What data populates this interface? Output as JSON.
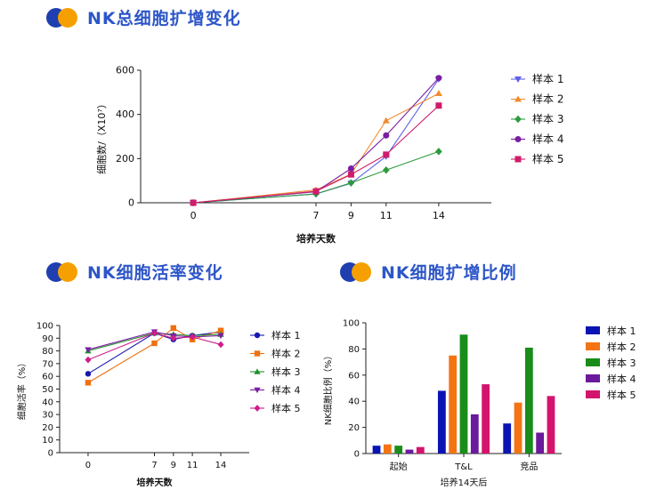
{
  "colors": {
    "header_blue": "#1f3fb0",
    "header_orange": "#f5a000",
    "title": "#2d56c8"
  },
  "sections": {
    "total_title": "NK总细胞扩增变化",
    "viability_title": "NK细胞活率变化",
    "ratio_title": "NK细胞扩增比例"
  },
  "chart_data": [
    {
      "id": "total",
      "type": "line",
      "title": "NK总细胞扩增变化",
      "xlabel": "培养天数",
      "ylabel": "细胞数/（X10⁷）",
      "x": [
        0,
        7,
        9,
        11,
        14
      ],
      "xlim": [
        -3,
        17
      ],
      "ylim": [
        0,
        600
      ],
      "yticks": [
        0,
        200,
        400,
        600
      ],
      "legend": "right",
      "series": [
        {
          "name": "样本 1",
          "color": "#6060e8",
          "marker": "tri-down",
          "values": [
            0,
            40,
            88,
            210,
            560
          ]
        },
        {
          "name": "样本 2",
          "color": "#f08c30",
          "marker": "tri-up",
          "values": [
            0,
            58,
            130,
            372,
            495
          ]
        },
        {
          "name": "样本 3",
          "color": "#2e9a3e",
          "marker": "diamond",
          "values": [
            0,
            40,
            90,
            148,
            232
          ]
        },
        {
          "name": "样本 4",
          "color": "#7a1fa2",
          "marker": "circle",
          "values": [
            0,
            50,
            155,
            305,
            565
          ]
        },
        {
          "name": "样本 5",
          "color": "#d01c6a",
          "marker": "square",
          "values": [
            0,
            52,
            128,
            218,
            440
          ]
        }
      ]
    },
    {
      "id": "viability",
      "type": "line",
      "title": "NK细胞活率变化",
      "xlabel": "培养天数",
      "ylabel": "细胞活率（%）",
      "x": [
        0,
        7,
        9,
        11,
        14
      ],
      "xlim": [
        -3,
        17
      ],
      "ylim": [
        0,
        100
      ],
      "yticks": [
        0,
        10,
        20,
        30,
        40,
        50,
        60,
        70,
        80,
        90,
        100
      ],
      "legend": "right",
      "series": [
        {
          "name": "样本 1",
          "color": "#1818b0",
          "marker": "circle",
          "values": [
            62,
            94,
            89,
            92,
            95
          ]
        },
        {
          "name": "样本 2",
          "color": "#f07010",
          "marker": "square",
          "values": [
            55,
            86,
            98,
            89,
            96
          ]
        },
        {
          "name": "样本 3",
          "color": "#20902c",
          "marker": "tri-up",
          "values": [
            80,
            94,
            93,
            92,
            93
          ]
        },
        {
          "name": "样本 4",
          "color": "#7a1fa2",
          "marker": "tri-down",
          "values": [
            81,
            95,
            92,
            91,
            92
          ]
        },
        {
          "name": "样本 5",
          "color": "#d01c8c",
          "marker": "diamond",
          "values": [
            73,
            94,
            90,
            91,
            85
          ]
        }
      ]
    },
    {
      "id": "ratio",
      "type": "bar",
      "title": "NK细胞扩增比例",
      "xlabel": "培养14天后",
      "ylabel": "NK细胞比例（%）",
      "categories": [
        "起始",
        "T&L",
        "竞品"
      ],
      "ylim": [
        0,
        100
      ],
      "yticks": [
        0,
        20,
        40,
        60,
        80,
        100
      ],
      "legend": "right",
      "series": [
        {
          "name": "样本 1",
          "color": "#0a14b4",
          "values": [
            6,
            48,
            23
          ]
        },
        {
          "name": "样本 2",
          "color": "#f47414",
          "values": [
            7,
            75,
            39
          ]
        },
        {
          "name": "样本 3",
          "color": "#1a8c1a",
          "values": [
            6,
            91,
            81
          ]
        },
        {
          "name": "样本 4",
          "color": "#6a1a9a",
          "values": [
            3,
            30,
            16
          ]
        },
        {
          "name": "样本 5",
          "color": "#d4146c",
          "values": [
            5,
            53,
            44
          ]
        }
      ]
    }
  ]
}
